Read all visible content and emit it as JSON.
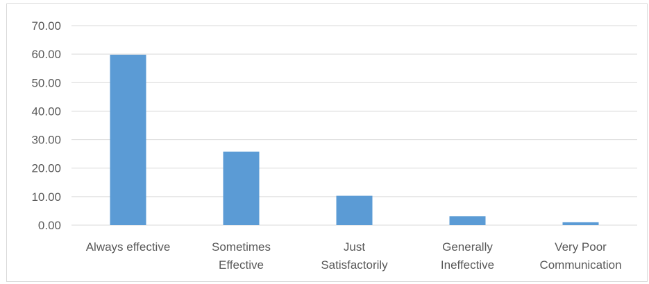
{
  "chart_data": {
    "type": "bar",
    "categories": [
      [
        "Always effective"
      ],
      [
        "Sometimes",
        "Effective"
      ],
      [
        "Just",
        "Satisfactorily"
      ],
      [
        "Generally",
        "Ineffective"
      ],
      [
        "Very Poor",
        "Communication"
      ]
    ],
    "values": [
      59.8,
      25.8,
      10.3,
      3.1,
      1.0
    ],
    "ylim": [
      0,
      70
    ],
    "y_ticks": [
      "0.00",
      "10.00",
      "20.00",
      "30.00",
      "40.00",
      "50.00",
      "60.00",
      "70.00"
    ],
    "grid": true,
    "legend": "none",
    "colors": {
      "bar": "#5b9bd5",
      "grid": "#d9d9d9",
      "text": "#595959"
    }
  }
}
